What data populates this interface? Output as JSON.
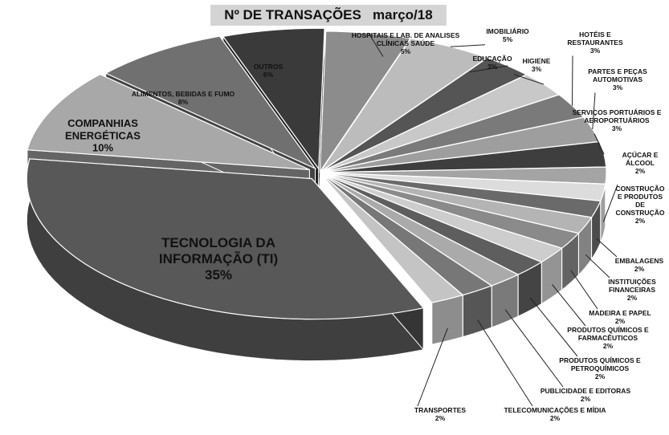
{
  "chart_data": {
    "type": "pie",
    "title": "Nº DE TRANSAÇÕES   março/18",
    "slices": [
      {
        "label": "HOSPITAIS E LAB. DE ANALISES CLÍNICAS SAÚDE",
        "value": 5,
        "pct_label": "5%",
        "color": "#8c8c8c"
      },
      {
        "label": "IMOBILIÁRIO",
        "value": 5,
        "pct_label": "5%",
        "color": "#bcbcbc"
      },
      {
        "label": "EDUCAÇÃO",
        "value": 3,
        "pct_label": "3%",
        "color": "#555555"
      },
      {
        "label": "HIGIENE",
        "value": 3,
        "pct_label": "3%",
        "color": "#c8c8c8"
      },
      {
        "label": "HOTÉIS E RESTAURANTES",
        "value": 3,
        "pct_label": "3%",
        "color": "#7a7a7a"
      },
      {
        "label": "PARTES E PEÇAS AUTOMOTIVAS",
        "value": 3,
        "pct_label": "3%",
        "color": "#9e9e9e"
      },
      {
        "label": "SERVIÇOS PORTUÁRIOS E AEROPORTUÁRIOS",
        "value": 3,
        "pct_label": "3%",
        "color": "#3e3e3e"
      },
      {
        "label": "AÇÚCAR E ÁLCOOL",
        "value": 2,
        "pct_label": "2%",
        "color": "#a4a4a4"
      },
      {
        "label": "CONSTRUÇÃO E PRODUTOS DE CONSTRUÇÃO",
        "value": 2,
        "pct_label": "2%",
        "color": "#dcdcdc"
      },
      {
        "label": "EMBALAGENS",
        "value": 2,
        "pct_label": "2%",
        "color": "#6a6a6a"
      },
      {
        "label": "INSTITUIÇÕES FINANCEIRAS",
        "value": 2,
        "pct_label": "2%",
        "color": "#b4b4b4"
      },
      {
        "label": "MADEIRA E PAPEL",
        "value": 2,
        "pct_label": "2%",
        "color": "#8a8a8a"
      },
      {
        "label": "PRODUTOS QUÍMICOS E FARMACÊUTICOS",
        "value": 2,
        "pct_label": "2%",
        "color": "#cdcdcd"
      },
      {
        "label": "PRODUTOS QUÍMICOS E PETROQUÍMICOS",
        "value": 2,
        "pct_label": "2%",
        "color": "#5e5e5e"
      },
      {
        "label": "PUBLICIDADE E EDITORAS",
        "value": 2,
        "pct_label": "2%",
        "color": "#aaaaaa"
      },
      {
        "label": "TELECOMUNICAÇÕES E MÍDIA",
        "value": 2,
        "pct_label": "2%",
        "color": "#777777"
      },
      {
        "label": "TRANSPORTES",
        "value": 2,
        "pct_label": "2%",
        "color": "#c4c4c4"
      },
      {
        "label": "TECNOLOGIA DA INFORMAÇÃO (TI)",
        "value": 35,
        "pct_label": "35%",
        "color": "#585858"
      },
      {
        "label": "COMPANHIAS ENERGÉTICAS",
        "value": 10,
        "pct_label": "10%",
        "color": "#a8a8a8"
      },
      {
        "label": "ALIMENTOS, BEBIDAS E FUMO",
        "value": 8,
        "pct_label": "8%",
        "color": "#707070"
      },
      {
        "label": "OUTROS",
        "value": 6,
        "pct_label": "6%",
        "color": "#3a3a3a"
      }
    ]
  }
}
